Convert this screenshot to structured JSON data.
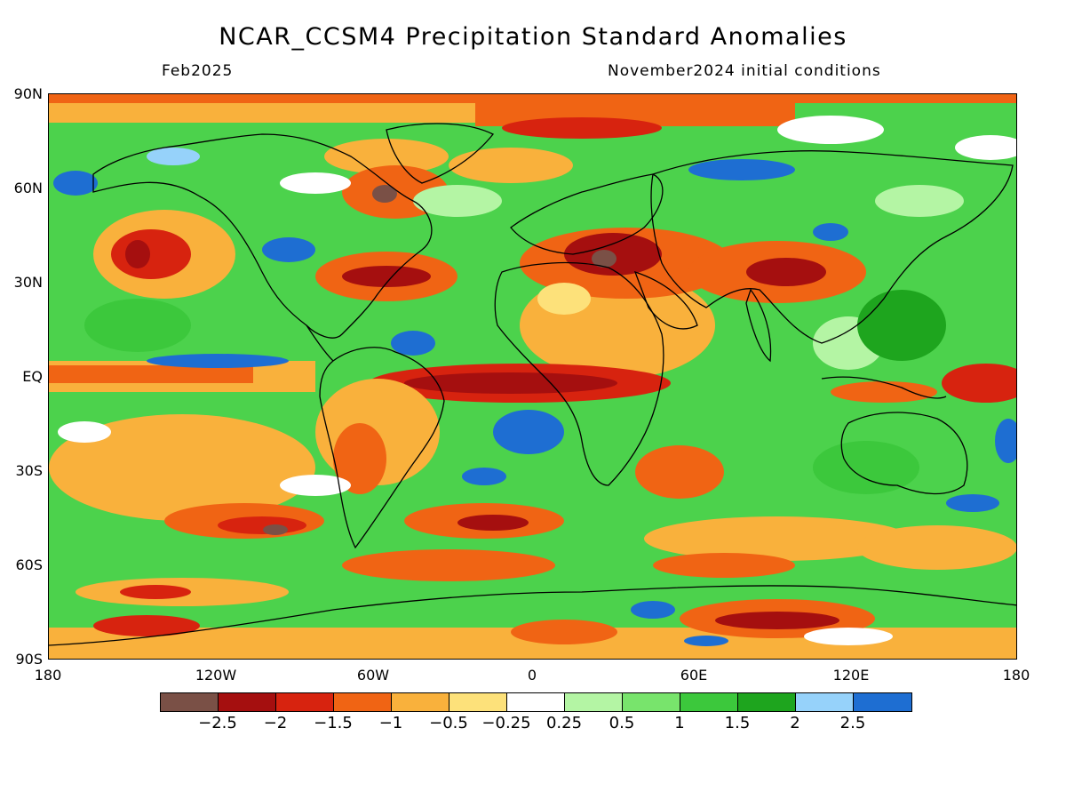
{
  "title": "NCAR_CCSM4 Precipitation Standard Anomalies",
  "subtitle_left": "Feb2025",
  "subtitle_right": "November2024 initial conditions",
  "lat_labels": [
    "90N",
    "60N",
    "30N",
    "EQ",
    "30S",
    "60S",
    "90S"
  ],
  "lon_labels": [
    "180",
    "120W",
    "60W",
    "0",
    "60E",
    "120E",
    "180"
  ],
  "colorbar": {
    "colors": [
      "#7a5046",
      "#a50f0f",
      "#d7230f",
      "#f06414",
      "#f9b13c",
      "#fde17a",
      "#ffffff",
      "#b4f5a4",
      "#78e46c",
      "#3cc83c",
      "#1ea51e",
      "#96d2fa",
      "#1e6ed2"
    ],
    "labels": [
      "−2.5",
      "−2",
      "−1.5",
      "−1",
      "−0.5",
      "−0.25",
      "0.25",
      "0.5",
      "1",
      "1.5",
      "2",
      "2.5"
    ]
  }
}
